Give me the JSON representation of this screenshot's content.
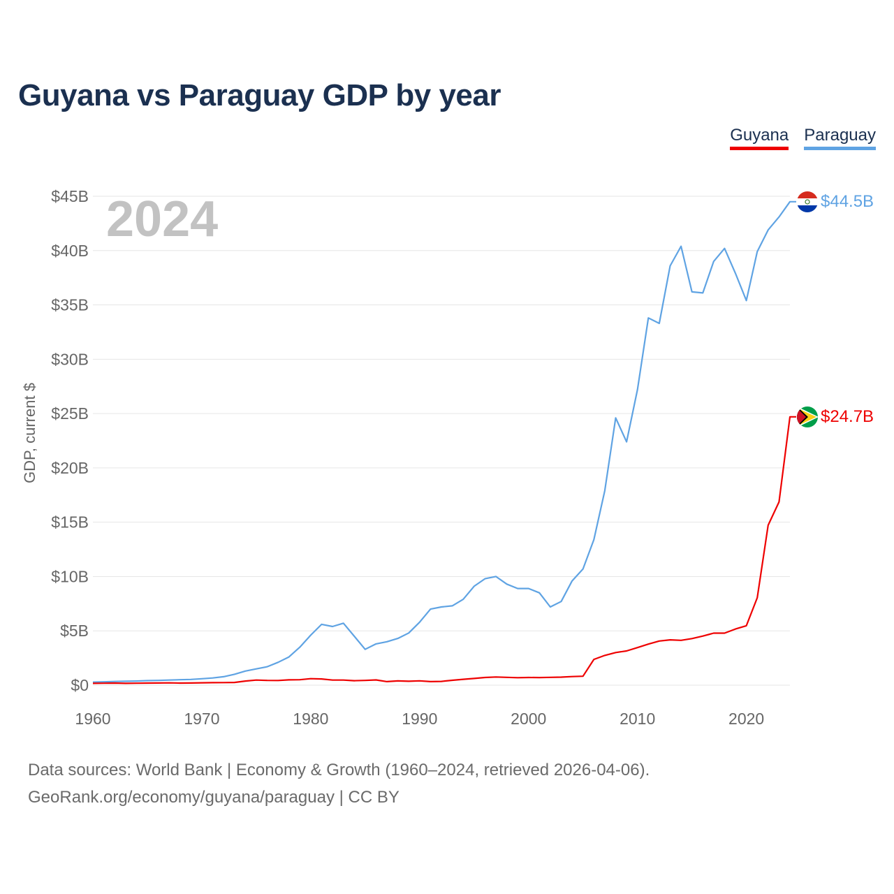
{
  "title": "Guyana vs Paraguay GDP by year",
  "legend": {
    "guyana": "Guyana",
    "paraguay": "Paraguay"
  },
  "year_watermark": "2024",
  "end_labels": {
    "paraguay": "$44.5B",
    "guyana": "$24.7B"
  },
  "source": {
    "line1": "Data sources: World Bank | Economy & Growth (1960–2024, retrieved 2026-04-06).",
    "line2": "GeoRank.org/economy/guyana/paraguay | CC BY"
  },
  "colors": {
    "guyana": "#ee0000",
    "paraguay": "#5fa3e3",
    "grid": "#e6e6e6",
    "axis_text": "#666666"
  },
  "chart_data": {
    "type": "line",
    "title": "Guyana vs Paraguay GDP by year",
    "xlabel": "",
    "ylabel": "GDP, current $",
    "xlim": [
      1960,
      2024
    ],
    "ylim": [
      0,
      45
    ],
    "units": "billion current US$",
    "yticks": [
      0,
      5,
      10,
      15,
      20,
      25,
      30,
      35,
      40,
      45
    ],
    "ytick_labels": [
      "$0",
      "$5B",
      "$10B",
      "$15B",
      "$20B",
      "$25B",
      "$30B",
      "$35B",
      "$40B",
      "$45B"
    ],
    "xticks": [
      1960,
      1970,
      1980,
      1990,
      2000,
      2010,
      2020
    ],
    "xtick_labels": [
      "1960",
      "1970",
      "1980",
      "1990",
      "2000",
      "2010",
      "2020"
    ],
    "x": [
      1960,
      1961,
      1962,
      1963,
      1964,
      1965,
      1966,
      1967,
      1968,
      1969,
      1970,
      1971,
      1972,
      1973,
      1974,
      1975,
      1976,
      1977,
      1978,
      1979,
      1980,
      1981,
      1982,
      1983,
      1984,
      1985,
      1986,
      1987,
      1988,
      1989,
      1990,
      1991,
      1992,
      1993,
      1994,
      1995,
      1996,
      1997,
      1998,
      1999,
      2000,
      2001,
      2002,
      2003,
      2004,
      2005,
      2006,
      2007,
      2008,
      2009,
      2010,
      2011,
      2012,
      2013,
      2014,
      2015,
      2016,
      2017,
      2018,
      2019,
      2020,
      2021,
      2022,
      2023,
      2024
    ],
    "series": [
      {
        "name": "Paraguay",
        "values": [
          0.28,
          0.31,
          0.34,
          0.36,
          0.38,
          0.42,
          0.44,
          0.47,
          0.5,
          0.53,
          0.59,
          0.66,
          0.78,
          1.0,
          1.3,
          1.5,
          1.7,
          2.1,
          2.6,
          3.5,
          4.6,
          5.6,
          5.4,
          5.7,
          4.5,
          3.3,
          3.8,
          4.0,
          4.3,
          4.8,
          5.8,
          7.0,
          7.2,
          7.3,
          7.9,
          9.1,
          9.8,
          10.0,
          9.3,
          8.9,
          8.9,
          8.5,
          7.2,
          7.7,
          9.6,
          10.7,
          13.4,
          17.9,
          24.6,
          22.4,
          27.2,
          33.8,
          33.3,
          38.6,
          40.4,
          36.2,
          36.1,
          39.0,
          40.2,
          37.9,
          35.4,
          39.9,
          41.9,
          43.1,
          44.5
        ]
      },
      {
        "name": "Guyana",
        "values": [
          0.17,
          0.18,
          0.19,
          0.17,
          0.18,
          0.19,
          0.2,
          0.21,
          0.19,
          0.2,
          0.22,
          0.23,
          0.24,
          0.25,
          0.38,
          0.47,
          0.44,
          0.43,
          0.49,
          0.5,
          0.6,
          0.57,
          0.47,
          0.47,
          0.41,
          0.44,
          0.48,
          0.33,
          0.39,
          0.36,
          0.4,
          0.33,
          0.35,
          0.45,
          0.54,
          0.62,
          0.71,
          0.75,
          0.72,
          0.69,
          0.71,
          0.7,
          0.72,
          0.74,
          0.79,
          0.82,
          2.37,
          2.74,
          3.0,
          3.15,
          3.46,
          3.78,
          4.06,
          4.17,
          4.13,
          4.29,
          4.52,
          4.79,
          4.79,
          5.17,
          5.47,
          8.04,
          14.72,
          16.87,
          24.7
        ]
      }
    ]
  }
}
